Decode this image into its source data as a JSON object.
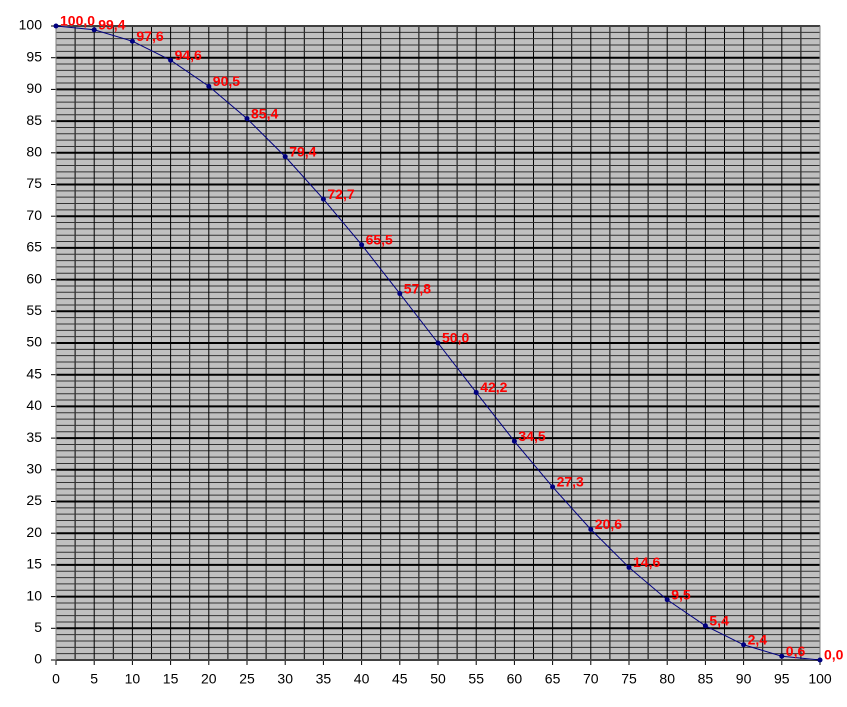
{
  "chart_data": {
    "type": "line",
    "x": [
      0,
      5,
      10,
      15,
      20,
      25,
      30,
      35,
      40,
      45,
      50,
      55,
      60,
      65,
      70,
      75,
      80,
      85,
      90,
      95,
      100
    ],
    "series": [
      {
        "color": "#000080",
        "label_color": "#ff0000",
        "values": [
          100.0,
          99.4,
          97.6,
          94.6,
          90.5,
          85.4,
          79.4,
          72.7,
          65.5,
          57.8,
          50.0,
          42.2,
          34.5,
          27.3,
          20.6,
          14.6,
          9.5,
          5.4,
          2.4,
          0.6,
          0.0
        ],
        "value_labels": [
          "100,0",
          "99,4",
          "97,6",
          "94,6",
          "90,5",
          "85,4",
          "79,4",
          "72,7",
          "65,5",
          "57,8",
          "50,0",
          "42,2",
          "34,5",
          "27,3",
          "20,6",
          "14,6",
          "9,5",
          "5,4",
          "2,4",
          "0,6",
          "0,0"
        ]
      }
    ],
    "xlim": [
      0,
      100
    ],
    "xticks": [
      0,
      5,
      10,
      15,
      20,
      25,
      30,
      35,
      40,
      45,
      50,
      55,
      60,
      65,
      70,
      75,
      80,
      85,
      90,
      95,
      100
    ],
    "ylim": [
      0,
      100
    ],
    "yticks": [
      0,
      5,
      10,
      15,
      20,
      25,
      30,
      35,
      40,
      45,
      50,
      55,
      60,
      65,
      70,
      75,
      80,
      85,
      90,
      95,
      100
    ],
    "grid": true,
    "minor_grid_divisions": {
      "x": 2,
      "y": 5
    },
    "plot_background": "#c0c0c0"
  }
}
